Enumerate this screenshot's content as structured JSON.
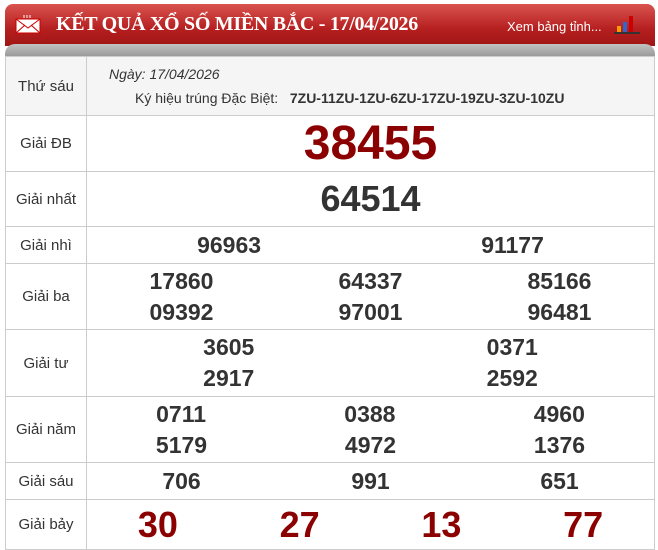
{
  "header": {
    "title": "KẾT QUẢ XỔ SỐ MIỀN BẮC - 17/04/2026",
    "link": "Xem bảng tỉnh...",
    "color": "#b51f1f"
  },
  "info": {
    "weekday": "Thứ sáu",
    "date_label": "Ngày: 17/04/2026",
    "code_label": "Ký hiệu trúng Đặc Biệt:",
    "code_value": "7ZU-11ZU-1ZU-6ZU-17ZU-19ZU-3ZU-10ZU"
  },
  "prizes": {
    "db": {
      "label": "Giải ĐB",
      "numbers": [
        "38455"
      ]
    },
    "nhat": {
      "label": "Giải nhất",
      "numbers": [
        "64514"
      ]
    },
    "nhi": {
      "label": "Giải nhì",
      "numbers": [
        "96963",
        "91177"
      ]
    },
    "ba": {
      "label": "Giải ba",
      "numbers": [
        "17860",
        "64337",
        "85166",
        "09392",
        "97001",
        "96481"
      ]
    },
    "tu": {
      "label": "Giải tư",
      "numbers": [
        "3605",
        "0371",
        "2917",
        "2592"
      ]
    },
    "nam": {
      "label": "Giải năm",
      "numbers": [
        "0711",
        "0388",
        "4960",
        "5179",
        "4972",
        "1376"
      ]
    },
    "sau": {
      "label": "Giải sáu",
      "numbers": [
        "706",
        "991",
        "651"
      ]
    },
    "bay": {
      "label": "Giải bảy",
      "numbers": [
        "30",
        "27",
        "13",
        "77"
      ]
    }
  }
}
